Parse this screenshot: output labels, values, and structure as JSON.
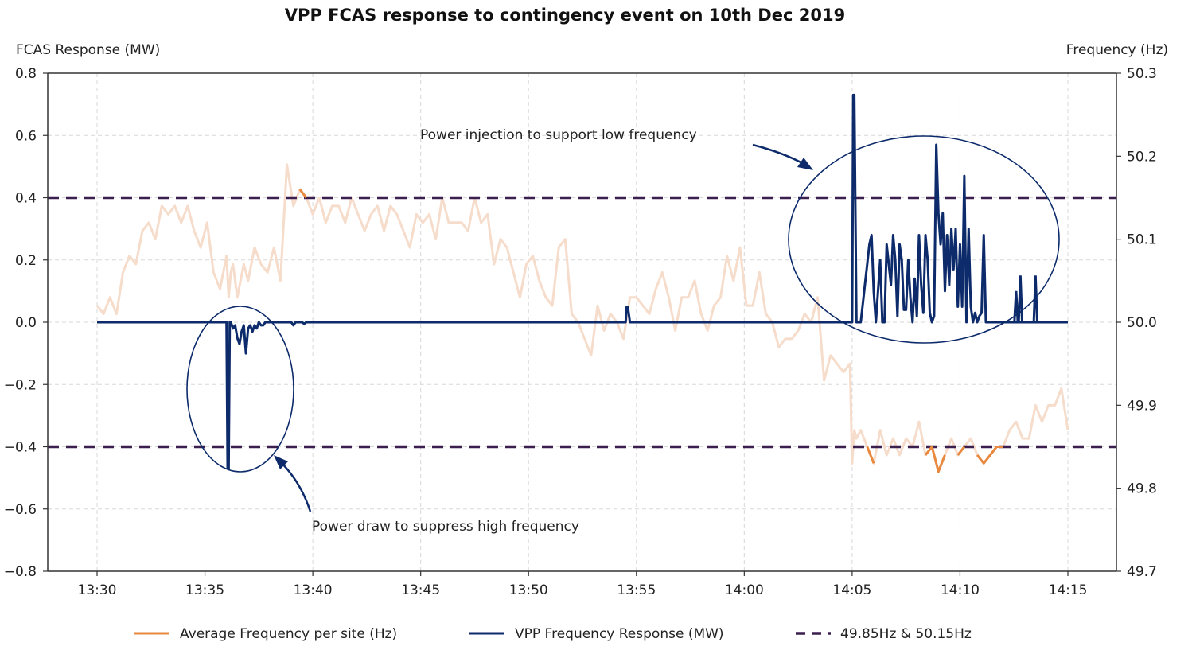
{
  "chart_data": {
    "type": "line",
    "title": "VPP FCAS response to contingency event on 10th Dec 2019",
    "ylabel_left": "FCAS Response (MW)",
    "ylabel_right": "Frequency (Hz)",
    "xlabel": "",
    "ylim_left": [
      -0.8,
      0.8
    ],
    "ylim_right": [
      49.7,
      50.3
    ],
    "xlim_minutes": [
      -2.3,
      46.8
    ],
    "x_origin_label": "13:30",
    "x_ticks": [
      "13:30",
      "13:35",
      "13:40",
      "13:45",
      "13:50",
      "13:55",
      "14:00",
      "14:05",
      "14:10",
      "14:15"
    ],
    "x_tick_minutes": [
      0,
      5,
      10,
      15,
      20,
      25,
      30,
      35,
      40,
      45
    ],
    "y_ticks_left": [
      "0.8",
      "0.6",
      "0.4",
      "0.2",
      "0.0",
      "−0.2",
      "−0.4",
      "−0.6",
      "−0.8"
    ],
    "y_tick_values_left": [
      0.8,
      0.6,
      0.4,
      0.2,
      0.0,
      -0.2,
      -0.4,
      -0.6,
      -0.8
    ],
    "y_ticks_right": [
      "50.3",
      "50.2",
      "50.1",
      "50.0",
      "49.9",
      "49.8",
      "49.7"
    ],
    "y_tick_values_right": [
      50.3,
      50.2,
      50.1,
      50.0,
      49.9,
      49.8,
      49.7
    ],
    "grid": true,
    "legend_position": "bottom",
    "series": [
      {
        "name": "Average Frequency per site (Hz)",
        "axis": "right",
        "color": "#e8893f",
        "faded_color": "#f6dccb",
        "highlight_outside": [
          49.85,
          50.15
        ],
        "x_minutes": [
          0,
          0.3,
          0.6,
          0.9,
          1.2,
          1.5,
          1.8,
          2.1,
          2.4,
          2.7,
          3.0,
          3.3,
          3.6,
          3.9,
          4.2,
          4.5,
          4.8,
          5.1,
          5.4,
          5.7,
          6.0,
          6.1,
          6.2,
          6.3,
          6.5,
          6.8,
          7.0,
          7.3,
          7.6,
          7.9,
          8.2,
          8.5,
          8.8,
          9.1,
          9.4,
          9.7,
          10.0,
          10.3,
          10.6,
          10.9,
          11.2,
          11.5,
          11.8,
          12.1,
          12.4,
          12.7,
          13.0,
          13.3,
          13.6,
          13.9,
          14.2,
          14.5,
          14.8,
          15.1,
          15.4,
          15.7,
          16.0,
          16.3,
          16.6,
          16.9,
          17.2,
          17.5,
          17.8,
          18.1,
          18.4,
          18.7,
          19.0,
          19.3,
          19.6,
          19.9,
          20.2,
          20.5,
          20.8,
          21.1,
          21.4,
          21.7,
          22.0,
          22.3,
          22.6,
          22.9,
          23.2,
          23.5,
          23.8,
          24.1,
          24.4,
          24.7,
          25.0,
          25.3,
          25.6,
          25.9,
          26.2,
          26.5,
          26.8,
          27.1,
          27.4,
          27.7,
          28.0,
          28.3,
          28.6,
          28.9,
          29.2,
          29.5,
          29.8,
          30.1,
          30.4,
          30.7,
          31.0,
          31.3,
          31.6,
          31.9,
          32.2,
          32.5,
          32.8,
          33.1,
          33.4,
          33.7,
          34.0,
          34.3,
          34.6,
          34.9,
          35.0,
          35.1,
          35.2,
          35.4,
          35.7,
          36.0,
          36.3,
          36.6,
          36.9,
          37.2,
          37.5,
          37.8,
          38.1,
          38.4,
          38.7,
          39.0,
          39.3,
          39.6,
          39.9,
          40.2,
          40.5,
          40.8,
          41.1,
          41.4,
          41.7,
          42.0,
          42.3,
          42.6,
          42.9,
          43.2,
          43.5,
          43.8,
          44.1,
          44.4,
          44.7,
          45.0
        ],
        "values": [
          50.02,
          50.01,
          50.03,
          50.01,
          50.06,
          50.08,
          50.07,
          50.11,
          50.12,
          50.1,
          50.14,
          50.13,
          50.14,
          50.12,
          50.14,
          50.11,
          50.09,
          50.12,
          50.06,
          50.04,
          50.08,
          50.03,
          50.06,
          50.07,
          50.03,
          50.07,
          50.05,
          50.09,
          50.07,
          50.06,
          50.09,
          50.05,
          50.19,
          50.14,
          50.16,
          50.15,
          50.13,
          50.15,
          50.12,
          50.14,
          50.14,
          50.12,
          50.15,
          50.13,
          50.11,
          50.13,
          50.14,
          50.11,
          50.14,
          50.13,
          50.11,
          50.09,
          50.13,
          50.12,
          50.13,
          50.1,
          50.15,
          50.12,
          50.12,
          50.12,
          50.11,
          50.15,
          50.12,
          50.13,
          50.07,
          50.1,
          50.09,
          50.06,
          50.03,
          50.07,
          50.08,
          50.05,
          50.03,
          50.02,
          50.09,
          50.1,
          50.01,
          50.0,
          49.98,
          49.96,
          50.02,
          49.99,
          50.01,
          50.0,
          49.98,
          50.03,
          50.03,
          50.02,
          50.01,
          50.04,
          50.06,
          50.03,
          49.99,
          50.03,
          50.03,
          50.05,
          50.01,
          49.99,
          50.02,
          50.03,
          50.08,
          50.05,
          50.09,
          50.02,
          50.02,
          50.06,
          50.01,
          50.0,
          49.97,
          49.98,
          49.98,
          49.99,
          50.01,
          50.0,
          50.03,
          49.93,
          49.96,
          49.95,
          49.94,
          49.95,
          49.83,
          49.87,
          49.86,
          49.87,
          49.85,
          49.83,
          49.87,
          49.84,
          49.86,
          49.84,
          49.86,
          49.85,
          49.88,
          49.84,
          49.85,
          49.82,
          49.84,
          49.86,
          49.84,
          49.85,
          49.86,
          49.84,
          49.83,
          49.84,
          49.85,
          49.85,
          49.87,
          49.88,
          49.86,
          49.86,
          49.9,
          49.88,
          49.9,
          49.9,
          49.92,
          49.87,
          49.94,
          49.96,
          50.05
        ]
      },
      {
        "name": "VPP Frequency Response (MW)",
        "axis": "left",
        "color": "#0d2b6b",
        "x_minutes": [
          0,
          6.0,
          6.05,
          6.1,
          6.15,
          6.2,
          6.3,
          6.4,
          6.5,
          6.6,
          6.7,
          6.8,
          6.9,
          7.0,
          7.1,
          7.2,
          7.3,
          7.4,
          7.5,
          7.6,
          7.7,
          7.8,
          7.9,
          8.0,
          8.5,
          9.0,
          9.1,
          9.2,
          9.5,
          9.6,
          9.7,
          24.5,
          24.55,
          24.6,
          24.7,
          24.75,
          35.0,
          35.05,
          35.1,
          35.2,
          35.25,
          35.4,
          35.8,
          35.9,
          36.0,
          36.1,
          36.3,
          36.4,
          36.5,
          36.6,
          36.8,
          36.9,
          37.0,
          37.1,
          37.2,
          37.3,
          37.4,
          37.5,
          37.6,
          37.7,
          37.8,
          37.9,
          38.0,
          38.1,
          38.2,
          38.3,
          38.4,
          38.5,
          38.6,
          38.7,
          38.8,
          38.9,
          39.0,
          39.1,
          39.2,
          39.3,
          39.4,
          39.5,
          39.6,
          39.7,
          39.8,
          39.9,
          40.0,
          40.1,
          40.2,
          40.3,
          40.4,
          40.5,
          40.6,
          40.7,
          40.8,
          40.9,
          41.0,
          41.1,
          41.2,
          41.3,
          41.4,
          41.5,
          41.6,
          41.7,
          41.8,
          41.9,
          42.0,
          42.1,
          42.2,
          42.3,
          42.4,
          42.5,
          43.0,
          43.3,
          43.5,
          44.0,
          45.0
        ],
        "values": [
          0,
          0,
          -0.47,
          -0.47,
          0,
          0,
          -0.02,
          -0.01,
          -0.05,
          -0.07,
          -0.03,
          -0.01,
          -0.1,
          -0.02,
          -0.01,
          -0.03,
          -0.01,
          -0.02,
          0,
          -0.01,
          -0.01,
          0,
          0,
          0,
          0,
          0,
          -0.01,
          0,
          0,
          -0.005,
          0,
          0,
          0.05,
          0.05,
          0,
          0,
          0,
          0.73,
          0.73,
          0,
          0,
          0,
          0.25,
          0.28,
          0.1,
          0,
          0.2,
          0,
          0,
          0.25,
          0.12,
          0.28,
          0.2,
          0.02,
          0.25,
          0.2,
          0.04,
          0.04,
          0.2,
          0.08,
          0,
          0.14,
          0.02,
          0.28,
          0.12,
          0.03,
          0.28,
          0.2,
          0.03,
          0,
          0.02,
          0.57,
          0.35,
          0.25,
          0.35,
          0.1,
          0.28,
          0.12,
          0.3,
          0.17,
          0.3,
          0.05,
          0.25,
          0.05,
          0.47,
          0.0,
          0.3,
          0.05,
          0,
          0.03,
          0,
          0.02,
          0.03,
          0.28,
          0.0,
          0,
          0,
          0,
          0,
          0,
          0,
          0,
          0,
          0,
          0,
          0,
          0,
          0,
          0,
          0,
          0,
          0,
          0
        ],
        "extra_spikes": [
          {
            "x": 42.6,
            "value": 0.1
          },
          {
            "x": 42.8,
            "value": 0.15
          },
          {
            "x": 43.5,
            "value": 0.15
          }
        ]
      },
      {
        "name": "49.85Hz & 50.15Hz",
        "axis": "right",
        "color": "#3b1f4e",
        "style": "dashed",
        "values": [
          49.85,
          50.15
        ]
      }
    ],
    "annotations": [
      {
        "text": "Power injection to support low frequency",
        "target": "positive VPP response after 14:05"
      },
      {
        "text": "Power draw to suppress high frequency",
        "target": "negative VPP response near 13:36"
      }
    ]
  }
}
